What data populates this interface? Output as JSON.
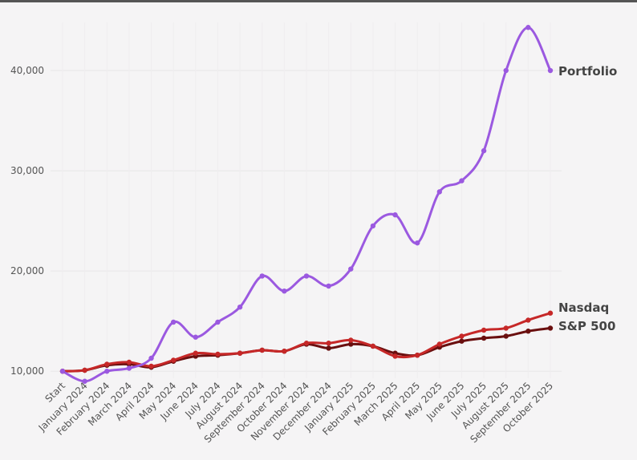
{
  "chart_data": {
    "type": "line",
    "title": "",
    "xlabel": "",
    "ylabel": "",
    "categories": [
      "Start",
      "January 2024",
      "February 2024",
      "March 2024",
      "April 2024",
      "May 2024",
      "June 2024",
      "July 2024",
      "August 2024",
      "September 2024",
      "October 2024",
      "November 2024",
      "December 2024",
      "January 2025",
      "February 2025",
      "March 2025",
      "April 2025",
      "May 2025",
      "June 2025",
      "July 2025",
      "August 2025",
      "September 2025",
      "October 2025"
    ],
    "ylim": [
      9300,
      44800
    ],
    "yticks": [
      10000,
      20000,
      30000,
      40000
    ],
    "ytick_labels": [
      "10,000",
      "20,000",
      "30,000",
      "40,000"
    ],
    "grid": true,
    "legend": "inline labels at line ends",
    "series": [
      {
        "name": "Portfolio",
        "color": "#9b59e0",
        "values": [
          10000,
          9000,
          10000,
          10300,
          11300,
          14900,
          13400,
          14900,
          16400,
          19500,
          18000,
          19500,
          18500,
          20200,
          24500,
          25600,
          22800,
          27900,
          29000,
          32000,
          40000,
          44300,
          40000
        ]
      },
      {
        "name": "Nasdaq",
        "color": "#c62828",
        "values": [
          10000,
          10100,
          10700,
          10900,
          10500,
          11100,
          11800,
          11700,
          11800,
          12100,
          12000,
          12800,
          12800,
          13100,
          12500,
          11500,
          11600,
          12700,
          13500,
          14100,
          14300,
          15100,
          15800
        ]
      },
      {
        "name": "S&P 500",
        "color": "#6a0f0f",
        "values": [
          10000,
          10100,
          10600,
          10700,
          10400,
          11000,
          11500,
          11600,
          11800,
          12100,
          12000,
          12700,
          12300,
          12700,
          12500,
          11800,
          11600,
          12400,
          13000,
          13300,
          13500,
          14000,
          14300
        ]
      }
    ]
  }
}
